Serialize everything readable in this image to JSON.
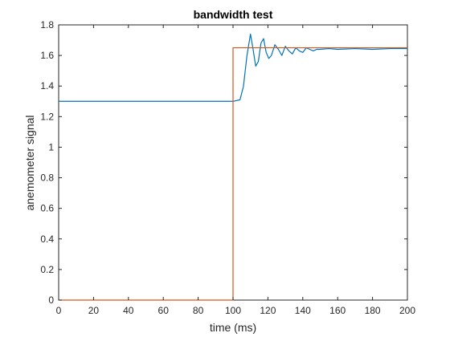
{
  "chart_data": {
    "type": "line",
    "title": "bandwidth test",
    "xlabel": "time (ms)",
    "ylabel": "anemometer signal",
    "xlim": [
      0,
      200
    ],
    "ylim": [
      0,
      1.8
    ],
    "xticks": [
      0,
      20,
      40,
      60,
      80,
      100,
      120,
      140,
      160,
      180,
      200
    ],
    "xtick_labels": [
      "0",
      "20",
      "40",
      "60",
      "80",
      "100",
      "120",
      "140",
      "160",
      "180",
      "200"
    ],
    "yticks": [
      0,
      0.2,
      0.4,
      0.6,
      0.8,
      1,
      1.2,
      1.4,
      1.6,
      1.8
    ],
    "ytick_labels": [
      "0",
      "0.2",
      "0.4",
      "0.6",
      "0.8",
      "1",
      "1.2",
      "1.4",
      "1.6",
      "1.8"
    ],
    "grid": false,
    "series": [
      {
        "color": "#0072BD",
        "x": [
          0,
          100,
          104,
          106,
          108,
          110,
          111.5,
          113,
          114.5,
          116,
          117.5,
          119,
          120.5,
          122,
          124,
          126,
          128,
          130,
          132,
          134,
          136,
          138,
          140,
          142,
          144,
          146,
          148,
          150,
          155,
          160,
          170,
          180,
          190,
          200
        ],
        "y": [
          1.3,
          1.3,
          1.31,
          1.4,
          1.6,
          1.74,
          1.64,
          1.53,
          1.56,
          1.68,
          1.71,
          1.62,
          1.58,
          1.6,
          1.67,
          1.64,
          1.6,
          1.66,
          1.63,
          1.61,
          1.65,
          1.63,
          1.62,
          1.65,
          1.64,
          1.63,
          1.64,
          1.64,
          1.645,
          1.64,
          1.645,
          1.64,
          1.645,
          1.645
        ]
      },
      {
        "color": "#D95319",
        "x": [
          0,
          100,
          100,
          200
        ],
        "y": [
          0,
          0,
          1.65,
          1.65
        ]
      }
    ]
  }
}
